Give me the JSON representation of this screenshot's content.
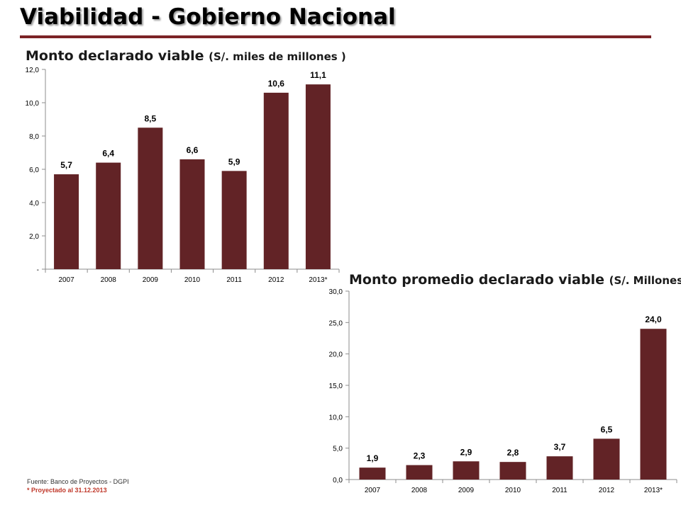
{
  "page": {
    "title": "Viabilidad - Gobierno Nacional",
    "source": "Fuente: Banco de Proyectos - DGPI",
    "note": "* Proyectado al 31.12.2013"
  },
  "colors": {
    "bar": "#622326",
    "rule": "#7b2326",
    "axis": "#8c8c8c"
  },
  "chart_data": [
    {
      "type": "bar",
      "title_main": "Monto declarado viable",
      "title_unit": "(S/. miles de millones )",
      "categories": [
        "2007",
        "2008",
        "2009",
        "2010",
        "2011",
        "2012",
        "2013*"
      ],
      "values": [
        5.7,
        6.4,
        8.5,
        6.6,
        5.9,
        10.6,
        11.1
      ],
      "data_labels": [
        "5,7",
        "6,4",
        "8,5",
        "6,6",
        "5,9",
        "10,6",
        "11,1"
      ],
      "ylim": [
        0,
        12
      ],
      "yticks": [
        0,
        2,
        4,
        6,
        8,
        10,
        12
      ],
      "ytick_labels": [
        "-",
        "2,0",
        "4,0",
        "6,0",
        "8,0",
        "10,0",
        "12,0"
      ],
      "grid": false
    },
    {
      "type": "bar",
      "title_main": "Monto promedio declarado viable",
      "title_unit": "(S/. Millones )",
      "categories": [
        "2007",
        "2008",
        "2009",
        "2010",
        "2011",
        "2012",
        "2013*"
      ],
      "values": [
        1.9,
        2.3,
        2.9,
        2.8,
        3.7,
        6.5,
        24.0
      ],
      "data_labels": [
        "1,9",
        "2,3",
        "2,9",
        "2,8",
        "3,7",
        "6,5",
        "24,0"
      ],
      "ylim": [
        0,
        30
      ],
      "yticks": [
        0,
        5,
        10,
        15,
        20,
        25,
        30
      ],
      "ytick_labels": [
        "0,0",
        "5,0",
        "10,0",
        "15,0",
        "20,0",
        "25,0",
        "30,0"
      ],
      "grid": false
    }
  ]
}
